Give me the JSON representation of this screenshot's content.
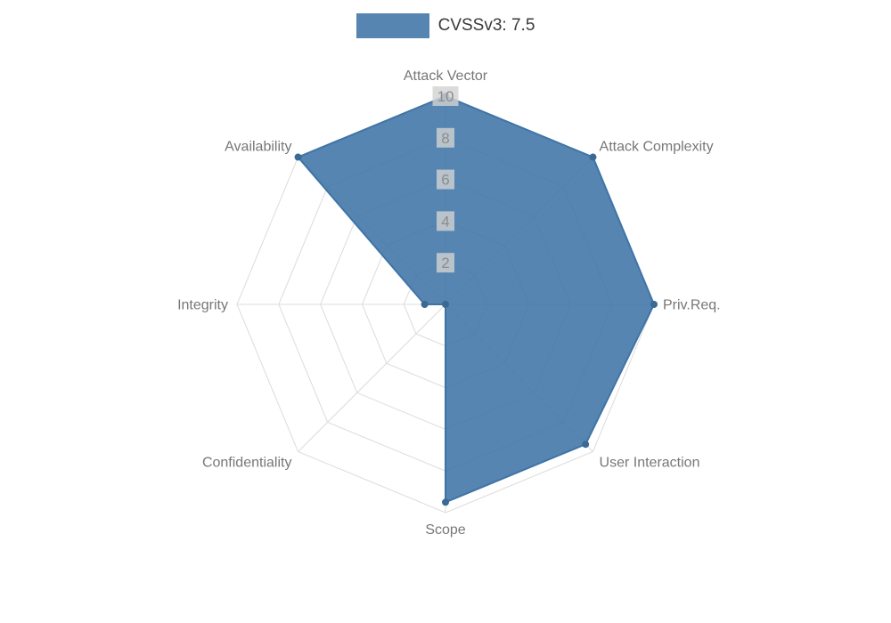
{
  "legend": {
    "label": "CVSSv3: 7.5"
  },
  "chart_data": {
    "type": "radar",
    "categories": [
      "Attack Vector",
      "Attack Complexity",
      "Priv.Req.",
      "User Interaction",
      "Scope",
      "Confidentiality",
      "Integrity",
      "Availability"
    ],
    "series": [
      {
        "name": "CVSSv3: 7.5",
        "values": [
          10,
          10,
          10,
          9.5,
          9.5,
          0,
          1,
          10
        ]
      }
    ],
    "rmin": 0,
    "rmax": 10,
    "ticks": [
      2,
      4,
      6,
      8,
      10
    ],
    "grid": true,
    "legend_position": "top",
    "colors": {
      "fill": "#3f74a6",
      "fill_opacity": 0.88,
      "stroke": "#3f74a6",
      "point": "#3a6a94",
      "grid": "#dcdcdc",
      "tick_text": "#8c8c8c",
      "tick_backdrop": "#d2d2d2",
      "tick_backdrop_opacity": 0.8,
      "axis_label": "#777777",
      "background": "#ffffff"
    }
  }
}
